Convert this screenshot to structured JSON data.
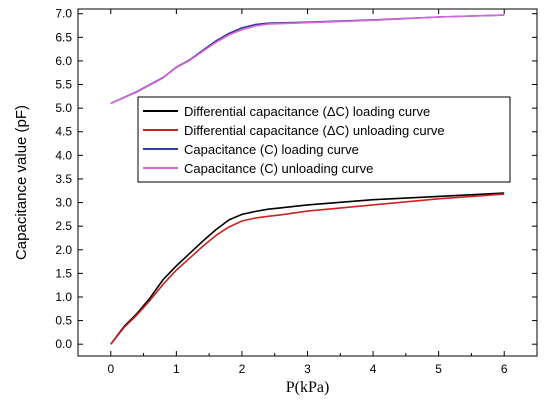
{
  "chart_data": {
    "type": "line",
    "title": "",
    "xlabel": "P(kPa)",
    "ylabel": "Capacitance value (pF)",
    "xlim": [
      -0.5,
      6.5
    ],
    "ylim": [
      -0.25,
      7.1
    ],
    "xticks": [
      0,
      1,
      2,
      3,
      4,
      5,
      6
    ],
    "xtick_labels": [
      "0",
      "1",
      "2",
      "3",
      "4",
      "5",
      "6"
    ],
    "yticks": [
      0.0,
      0.5,
      1.0,
      1.5,
      2.0,
      2.5,
      3.0,
      3.5,
      4.0,
      4.5,
      5.0,
      5.5,
      6.0,
      6.5,
      7.0
    ],
    "ytick_labels": [
      "0.0",
      "0.5",
      "1.0",
      "1.5",
      "2.0",
      "2.5",
      "3.0",
      "3.5",
      "4.0",
      "4.5",
      "5.0",
      "5.5",
      "6.0",
      "6.5",
      "7.0"
    ],
    "legend_position": "center-right",
    "series": [
      {
        "name": "Differential capacitance (ΔC) loading curve",
        "color": "#000000",
        "x": [
          0,
          0.2,
          0.4,
          0.6,
          0.8,
          1.0,
          1.2,
          1.4,
          1.6,
          1.8,
          2.0,
          2.2,
          2.4,
          2.6,
          3.0,
          4.0,
          5.0,
          6.0
        ],
        "y": [
          0.0,
          0.37,
          0.65,
          0.98,
          1.37,
          1.66,
          1.92,
          2.18,
          2.42,
          2.63,
          2.75,
          2.81,
          2.86,
          2.89,
          2.95,
          3.06,
          3.13,
          3.2
        ]
      },
      {
        "name": "Differential capacitance (ΔC) unloading curve",
        "color": "#cc2222",
        "x": [
          0,
          0.2,
          0.4,
          0.6,
          0.8,
          1.0,
          1.2,
          1.4,
          1.6,
          1.8,
          2.0,
          2.2,
          2.4,
          2.6,
          3.0,
          4.0,
          5.0,
          6.0
        ],
        "y": [
          0.0,
          0.35,
          0.62,
          0.93,
          1.27,
          1.57,
          1.82,
          2.07,
          2.3,
          2.48,
          2.61,
          2.67,
          2.71,
          2.74,
          2.82,
          2.95,
          3.08,
          3.18
        ]
      },
      {
        "name": "Capacitance (C) loading curve",
        "color": "#2b3b9e",
        "x": [
          0,
          0.4,
          0.8,
          1.0,
          1.2,
          1.4,
          1.6,
          1.8,
          2.0,
          2.2,
          2.4,
          3.0,
          4.0,
          5.0,
          6.0
        ],
        "y": [
          5.1,
          5.35,
          5.65,
          5.87,
          6.02,
          6.22,
          6.42,
          6.58,
          6.7,
          6.77,
          6.8,
          6.82,
          6.87,
          6.93,
          6.97
        ]
      },
      {
        "name": "Capacitance (C) unloading curve",
        "color": "#d966d9",
        "x": [
          0,
          0.4,
          0.8,
          1.0,
          1.2,
          1.4,
          1.6,
          1.8,
          2.0,
          2.2,
          2.4,
          3.0,
          4.0,
          5.0,
          6.0
        ],
        "y": [
          5.1,
          5.34,
          5.64,
          5.86,
          6.01,
          6.2,
          6.39,
          6.55,
          6.66,
          6.74,
          6.78,
          6.81,
          6.86,
          6.93,
          6.97
        ]
      }
    ]
  }
}
